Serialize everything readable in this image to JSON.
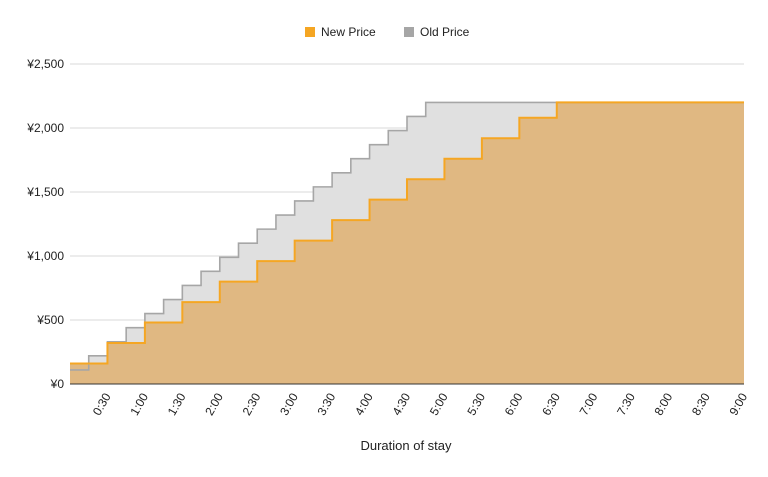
{
  "chart_data": {
    "type": "area",
    "step": true,
    "xlabel": "Duration of stay",
    "ylabel": "",
    "ylim": [
      0,
      2500
    ],
    "y_ticks": [
      0,
      500,
      1000,
      1500,
      2000,
      2500
    ],
    "y_tick_labels": [
      "¥0",
      "¥500",
      "¥1,000",
      "¥1,500",
      "¥2,000",
      "¥2,500"
    ],
    "x_unit_minutes": 15,
    "x_range": [
      0,
      540
    ],
    "x_ticks": [
      30,
      60,
      90,
      120,
      150,
      180,
      210,
      240,
      270,
      300,
      330,
      360,
      390,
      420,
      450,
      480,
      510,
      540
    ],
    "x_tick_labels": [
      "0:30",
      "1:00",
      "1:30",
      "2:00",
      "2:30",
      "3:00",
      "3:30",
      "4:00",
      "4:30",
      "5:00",
      "5:30",
      "6:00",
      "6:30",
      "7:00",
      "7:30",
      "8:00",
      "8:30",
      "9:00"
    ],
    "grid": true,
    "legend_position": "top-center",
    "series": [
      {
        "name": "New Price",
        "color": "#f5a623",
        "fill": "#e0b882",
        "x": [
          0,
          30,
          60,
          90,
          120,
          150,
          180,
          210,
          240,
          270,
          300,
          330,
          360,
          390,
          540
        ],
        "values": [
          160,
          320,
          480,
          640,
          800,
          960,
          1120,
          1280,
          1440,
          1600,
          1760,
          1920,
          2080,
          2200,
          2200
        ]
      },
      {
        "name": "Old Price",
        "color": "#a6a6a6",
        "fill": "#e0e0e0",
        "x": [
          0,
          15,
          30,
          45,
          60,
          75,
          90,
          105,
          120,
          135,
          150,
          165,
          180,
          195,
          210,
          225,
          240,
          255,
          270,
          285,
          540
        ],
        "values": [
          110,
          220,
          330,
          440,
          550,
          660,
          770,
          880,
          990,
          1100,
          1210,
          1320,
          1430,
          1540,
          1650,
          1760,
          1870,
          1980,
          2090,
          2200,
          2200
        ]
      }
    ]
  }
}
